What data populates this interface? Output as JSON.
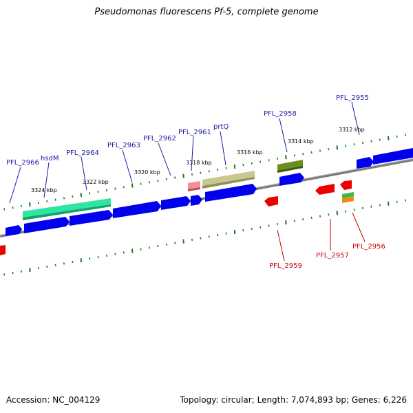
{
  "title": "Pseudomonas fluorescens Pf-5, complete genome",
  "footer": {
    "accession_label": "Accession:",
    "accession": "NC_004129",
    "topology_label": "Topology:",
    "topology": "circular",
    "length_label": "Length:",
    "length": "7,074,893 bp",
    "genes_label": "Genes:",
    "genes": "6,226"
  },
  "scale_labels": [
    "3324 kbp",
    "3322 kbp",
    "3320 kbp",
    "3318 kbp",
    "3316 kbp",
    "3314 kbp",
    "3312 kbp"
  ],
  "forward_gene_labels": [
    "PFL_2966",
    "hsdM",
    "PFL_2964",
    "PFL_2963",
    "PFL_2962",
    "PFL_2961",
    "prtQ",
    "PFL_2958",
    "PFL_2955"
  ],
  "reverse_gene_labels": [
    "PFL_2959",
    "PFL_2957",
    "PFL_2956"
  ],
  "colors": {
    "forward_label": "#1a1aa0",
    "reverse_label": "#c00000",
    "cds_forward": "#0000ee",
    "cds_reverse": "#ee0000",
    "backbone": "#808080",
    "tick": "#1f7a1f",
    "hsdM_feature": "#2ee6a0",
    "prtQ_feature": "#b8b878",
    "pfl2958_feature": "#6b8e23",
    "pfl2961_feature": "#e87878",
    "pfl2956_feature_top": "#3cb84a",
    "pfl2956_feature_bottom": "#f08a1c"
  }
}
